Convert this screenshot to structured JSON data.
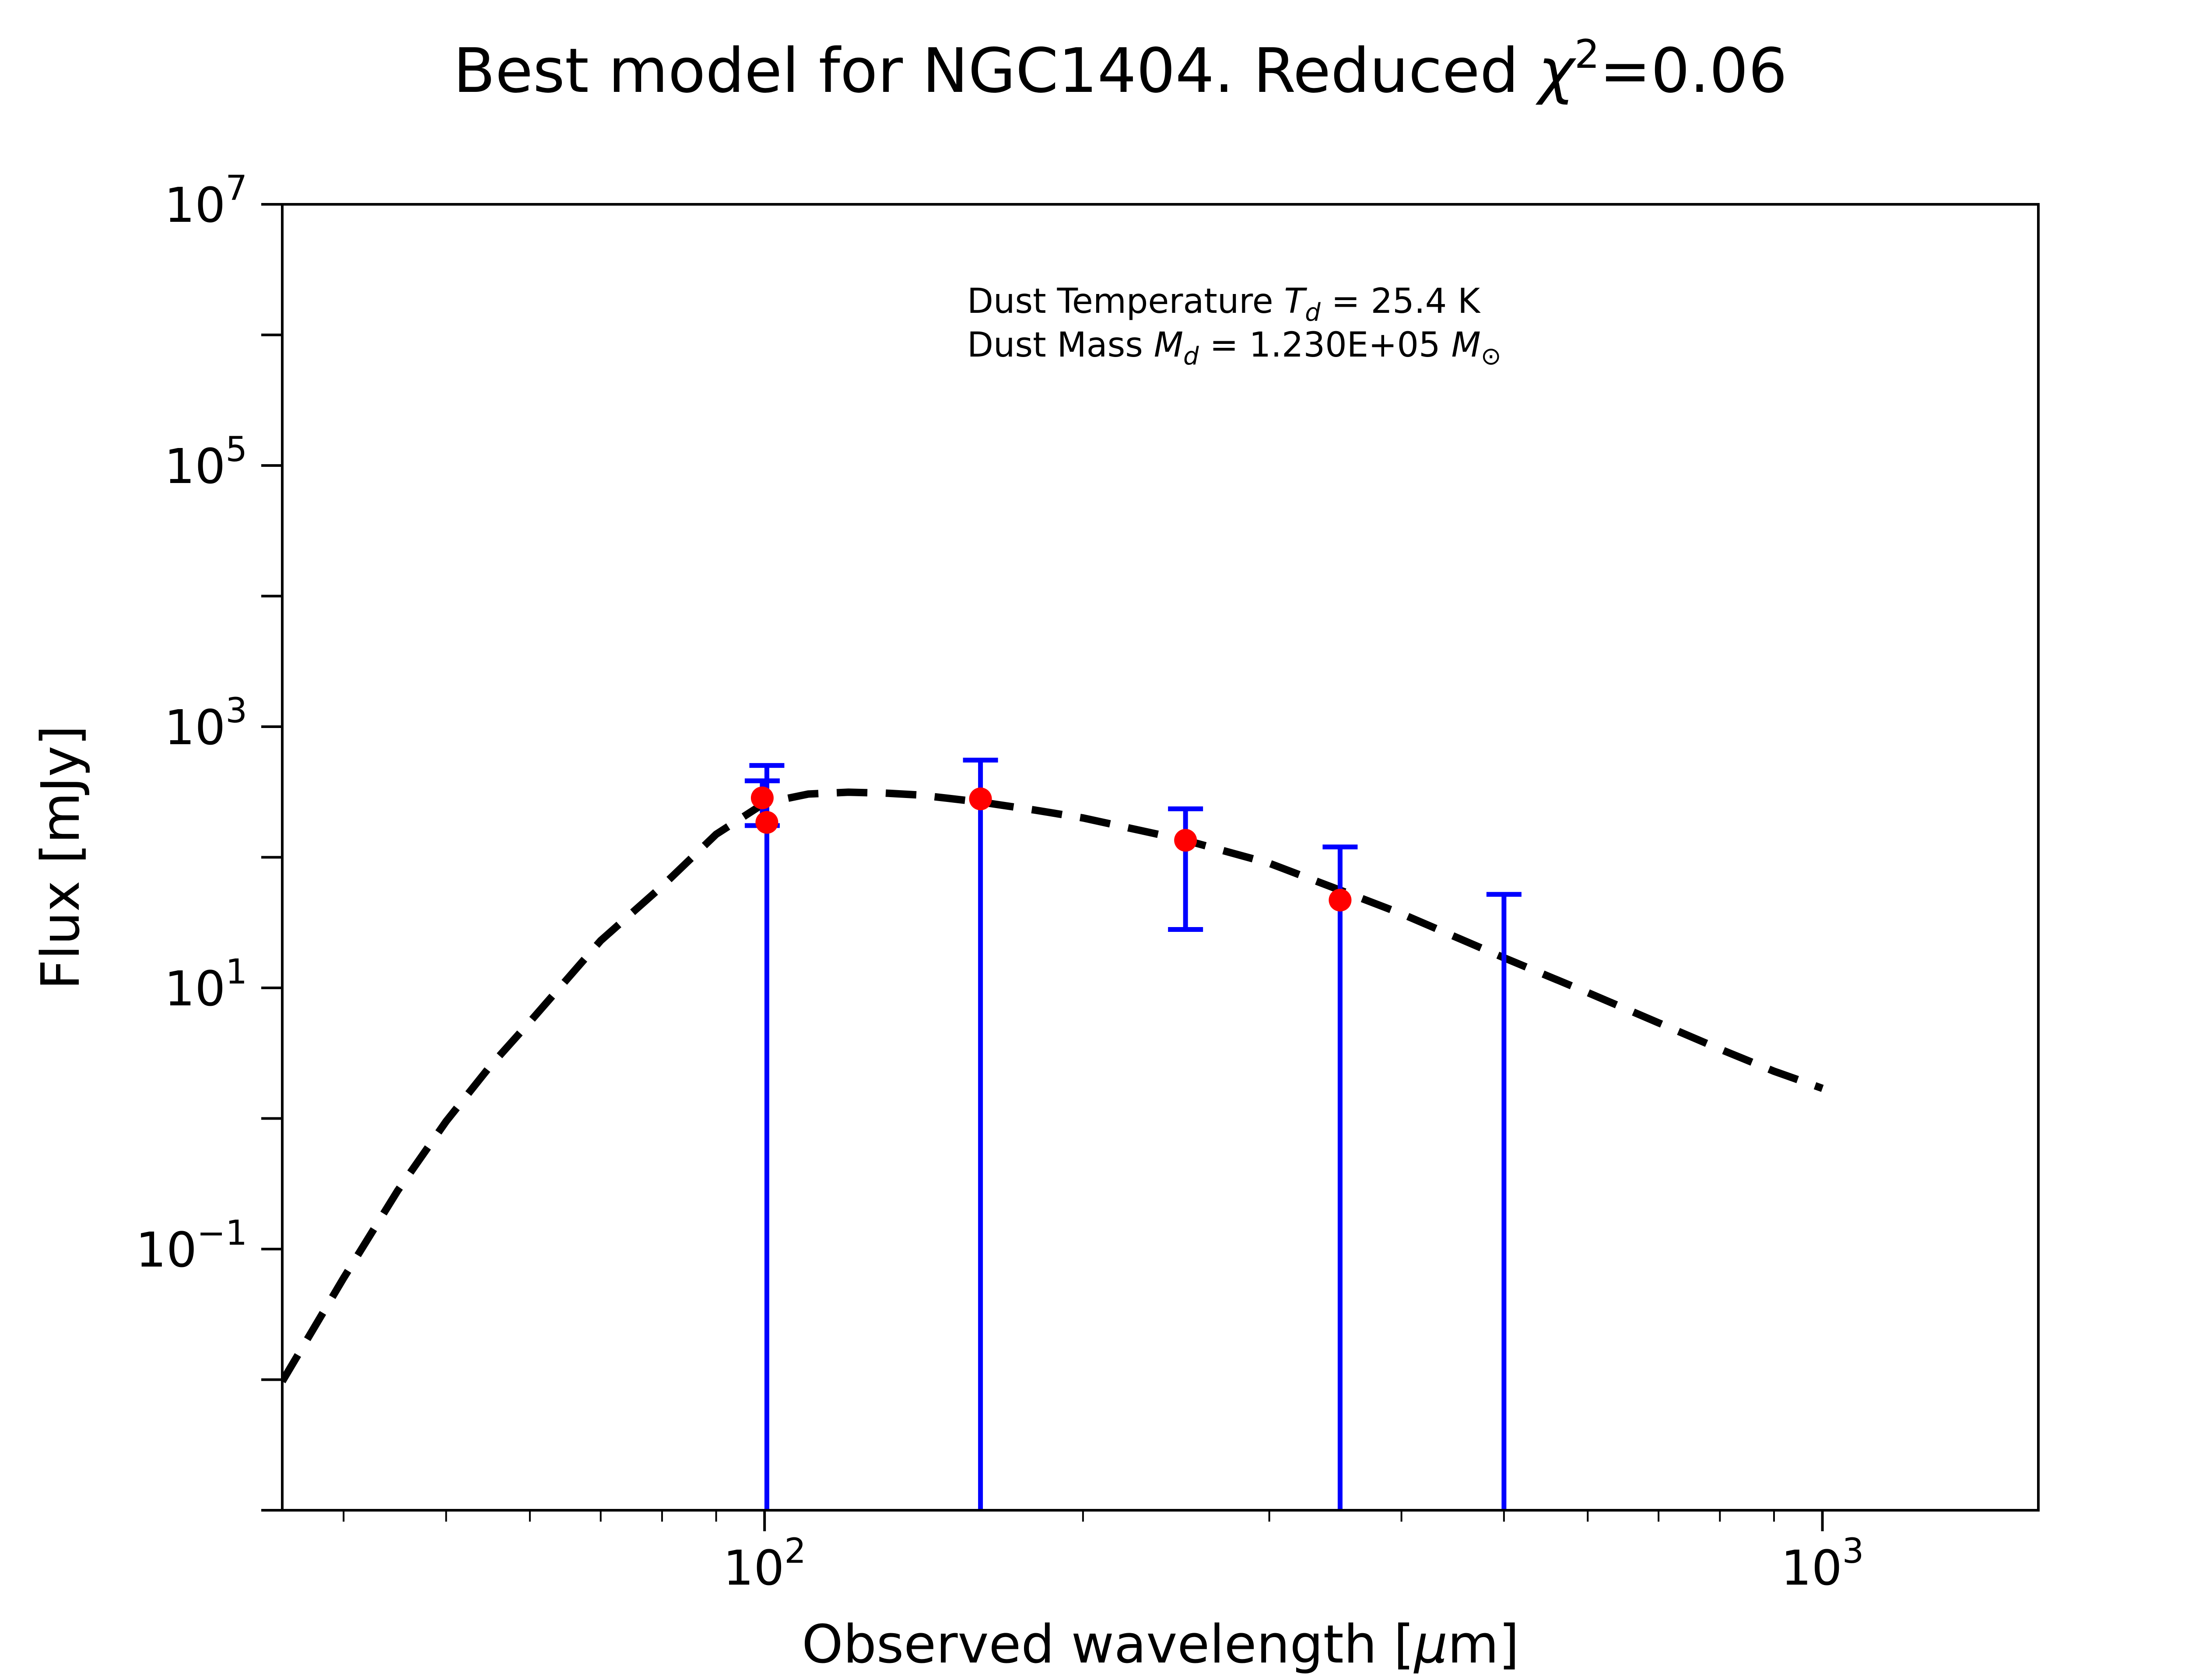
{
  "chart_data": {
    "type": "scatter",
    "title": {
      "prefix": "Best model for NGC1404. Reduced ",
      "chi_symbol": "χ",
      "chi_exponent": "2",
      "suffix": "=0.06"
    },
    "xlabel": {
      "prefix": "Observed wavelength [",
      "mu": "μ",
      "suffix": "m]"
    },
    "ylabel": "Flux [mJy]",
    "xscale": "log",
    "yscale": "log",
    "xlim": [
      35,
      1600
    ],
    "ylim": [
      0.001,
      10000000
    ],
    "x_ticks": [
      {
        "value": 100,
        "base": "10",
        "exp": "2"
      },
      {
        "value": 1000,
        "base": "10",
        "exp": "3"
      }
    ],
    "y_ticks": [
      {
        "value": 0.1,
        "base": "10",
        "exp": "−1"
      },
      {
        "value": 10,
        "base": "10",
        "exp": "1"
      },
      {
        "value": 1000,
        "base": "10",
        "exp": "3"
      },
      {
        "value": 100000,
        "base": "10",
        "exp": "5"
      },
      {
        "value": 10000000,
        "base": "10",
        "exp": "7"
      }
    ],
    "annotation": {
      "line1_prefix": "Dust Temperature ",
      "line1_symbol": "T",
      "line1_sub": "d",
      "line1_suffix": " = 25.4 K",
      "line2_prefix": "Dust Mass ",
      "line2_symbol": "M",
      "line2_sub": "d",
      "line2_mid": " = 1.230E+05 ",
      "line2_unit": "M",
      "line2_unit_sub": "⊙"
    },
    "series": [
      {
        "kind": "points",
        "color": "#ff0000",
        "x": [
          99.5,
          100.5,
          160,
          250,
          350
        ],
        "y": [
          285,
          185,
          280,
          135,
          47
        ]
      },
      {
        "kind": "errorbars",
        "color": "#0000ff",
        "bars": [
          {
            "x": 99.5,
            "low": 175,
            "high": 385
          },
          {
            "x": 100.5,
            "low": 0.001,
            "high": 505
          },
          {
            "x": 160,
            "low": 0.001,
            "high": 555
          },
          {
            "x": 250,
            "low": 28,
            "high": 235
          },
          {
            "x": 350,
            "low": 0.001,
            "high": 120
          },
          {
            "x": 500,
            "low": 0.001,
            "high": 52
          }
        ]
      },
      {
        "kind": "model",
        "color": "#000000",
        "style": "dashed",
        "x": [
          35,
          40,
          45,
          50,
          55,
          60,
          70,
          80,
          90,
          100,
          110,
          120,
          130,
          140,
          160,
          180,
          200,
          250,
          300,
          350,
          400,
          500,
          600,
          700,
          800,
          900,
          1000
        ],
        "y": [
          0.0097,
          0.06,
          0.28,
          0.95,
          2.5,
          5.5,
          23,
          60,
          150,
          260,
          305,
          315,
          310,
          300,
          265,
          230,
          200,
          135,
          90,
          56,
          37,
          17,
          9.2,
          5.4,
          3.4,
          2.3,
          1.7
        ]
      }
    ]
  }
}
